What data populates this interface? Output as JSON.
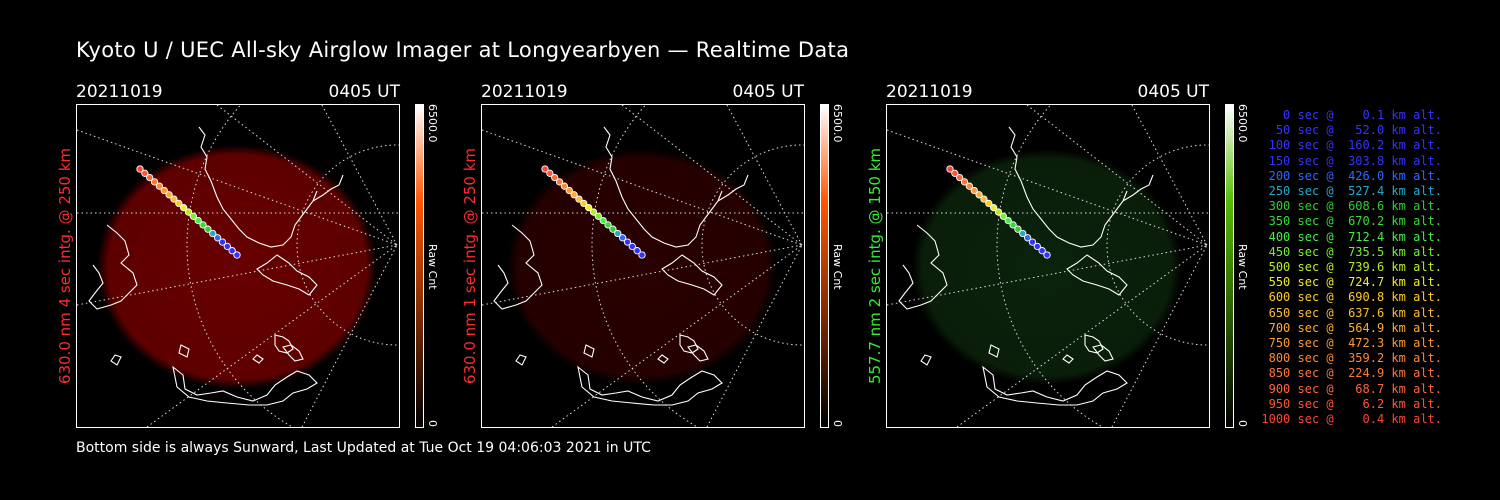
{
  "title": "Kyoto U / UEC All-sky Airglow Imager at Longyearbyen — Realtime Data",
  "footer": "Bottom side is always Sunward, Last Updated at Tue Oct 19 04:06:03 2021 in UTC",
  "panels": [
    {
      "date": "20211019",
      "time": "0405 UT",
      "ylabel": "630.0 nm 4 sec intg. @ 250 km",
      "ylabel_color": "#ff2a2a",
      "colorbar_max": "6500.0",
      "colorbar_unit": "Raw Cnt",
      "colorbar_min": "0",
      "colorbar_color": "#ff5500",
      "glow": "#7a0000",
      "glow_opacity": 0.85
    },
    {
      "date": "20211019",
      "time": "0405 UT",
      "ylabel": "630.0 nm 1 sec intg. @ 250 km",
      "ylabel_color": "#ff2a2a",
      "colorbar_max": "6500.0",
      "colorbar_unit": "Raw Cnt",
      "colorbar_min": "0",
      "colorbar_color": "#ff5500",
      "glow": "#3a0000",
      "glow_opacity": 0.7
    },
    {
      "date": "20211019",
      "time": "0405 UT",
      "ylabel": "557.7 nm 2 sec intg. @ 150 km",
      "ylabel_color": "#33ee33",
      "colorbar_max": "6500.0",
      "colorbar_unit": "Raw Cnt",
      "colorbar_min": "0",
      "colorbar_color": "#55bb00",
      "glow": "#0d2a0d",
      "glow_opacity": 0.8
    }
  ],
  "legend": [
    {
      "text": "   0 sec @    0.1 km alt.",
      "color": "#3333ff"
    },
    {
      "text": "  50 sec @   52.0 km alt.",
      "color": "#3333ff"
    },
    {
      "text": " 100 sec @  160.2 km alt.",
      "color": "#3333ff"
    },
    {
      "text": " 150 sec @  303.8 km alt.",
      "color": "#3333ff"
    },
    {
      "text": " 200 sec @  426.0 km alt.",
      "color": "#3366ff"
    },
    {
      "text": " 250 sec @  527.4 km alt.",
      "color": "#22aacc"
    },
    {
      "text": " 300 sec @  608.6 km alt.",
      "color": "#33cc33"
    },
    {
      "text": " 350 sec @  670.2 km alt.",
      "color": "#33dd33"
    },
    {
      "text": " 400 sec @  712.4 km alt.",
      "color": "#44ee44"
    },
    {
      "text": " 450 sec @  735.5 km alt.",
      "color": "#77ee33"
    },
    {
      "text": " 500 sec @  739.6 km alt.",
      "color": "#bbee22"
    },
    {
      "text": " 550 sec @  724.7 km alt.",
      "color": "#eeee22"
    },
    {
      "text": " 600 sec @  690.8 km alt.",
      "color": "#ffcc22"
    },
    {
      "text": " 650 sec @  637.6 km alt.",
      "color": "#ffbb33"
    },
    {
      "text": " 700 sec @  564.9 km alt.",
      "color": "#ffaa33"
    },
    {
      "text": " 750 sec @  472.3 km alt.",
      "color": "#ff9933"
    },
    {
      "text": " 800 sec @  359.2 km alt.",
      "color": "#ff8833"
    },
    {
      "text": " 850 sec @  224.9 km alt.",
      "color": "#ff7733"
    },
    {
      "text": " 900 sec @   68.7 km alt.",
      "color": "#ff6633"
    },
    {
      "text": " 950 sec @    6.2 km alt.",
      "color": "#ff5533"
    },
    {
      "text": "1000 sec @    0.4 km alt.",
      "color": "#ff4433"
    }
  ]
}
